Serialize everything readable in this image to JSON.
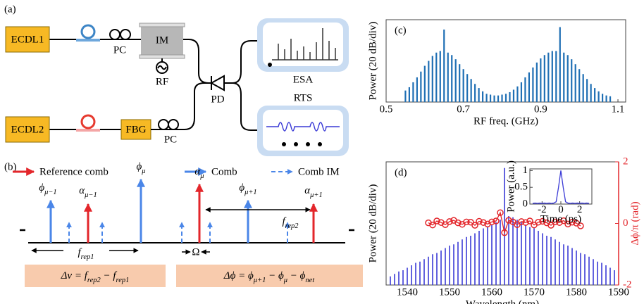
{
  "panel_a": {
    "label": "(a)",
    "ecdl1": "ECDL1",
    "pc1": "PC",
    "im": "IM",
    "rf": "RF",
    "ecdl2": "ECDL2",
    "fbg": "FBG",
    "pc2": "PC",
    "pd": "PD",
    "esa": "ESA",
    "rts": "RTS"
  },
  "panel_b": {
    "label": "(b)",
    "legend": [
      "Reference comb",
      "Comb",
      "Comb IM"
    ],
    "symbols": {
      "phi_m1": [
        [
          "ϕ",
          "μ−1"
        ]
      ],
      "alpha_m1": [
        [
          "α",
          "μ−1"
        ]
      ],
      "phi_m": [
        [
          "ϕ",
          "μ"
        ]
      ],
      "alpha_m": [
        [
          "α",
          "μ"
        ]
      ],
      "phi_p1": [
        [
          "ϕ",
          "μ+1"
        ]
      ],
      "alpha_p1": [
        [
          "α",
          "μ+1"
        ]
      ],
      "f_rep2": [
        [
          "f",
          "rep2"
        ]
      ],
      "f_rep1": [
        [
          "f",
          "rep1"
        ]
      ]
    },
    "omega": "Ω",
    "equations": [
      [
        [
          "Δv = f",
          "rep2"
        ],
        [
          " − f",
          "rep1"
        ]
      ],
      [
        [
          "Δϕ = ϕ",
          "μ+1"
        ],
        [
          " − ϕ",
          "μ"
        ],
        [
          " − ϕ",
          "net"
        ]
      ]
    ]
  },
  "chart_data": [
    {
      "type": "stem",
      "panel_label": "(c)",
      "xlabel": "RF freq. (GHz)",
      "ylabel": "Power (20 dB/div)",
      "xlim": [
        0.5,
        1.12
      ],
      "xticks": [
        0.5,
        0.7,
        0.9,
        1.1
      ],
      "ylim": [
        0,
        100
      ],
      "series": [
        {
          "color": "#1f6fb4",
          "x": [
            0.55,
            0.56,
            0.57,
            0.58,
            0.59,
            0.6,
            0.61,
            0.62,
            0.63,
            0.64,
            0.65,
            0.66,
            0.67,
            0.68,
            0.69,
            0.7,
            0.71,
            0.72,
            0.73,
            0.74,
            0.75,
            0.76,
            0.77,
            0.78,
            0.79,
            0.8,
            0.81,
            0.82,
            0.83,
            0.84,
            0.85,
            0.86,
            0.87,
            0.88,
            0.89,
            0.9,
            0.91,
            0.92,
            0.93,
            0.94,
            0.95,
            0.96,
            0.97,
            0.98,
            0.99,
            1.0,
            1.01,
            1.02,
            1.03,
            1.04,
            1.05,
            1.06,
            1.07,
            1.08
          ],
          "values": [
            14,
            18,
            24,
            30,
            37,
            44,
            50,
            56,
            60,
            62,
            88,
            60,
            57,
            52,
            46,
            40,
            34,
            28,
            22,
            17,
            13,
            10,
            9,
            8,
            8,
            9,
            10,
            12,
            15,
            19,
            24,
            30,
            36,
            42,
            48,
            53,
            57,
            60,
            62,
            62,
            91,
            60,
            57,
            52,
            46,
            40,
            34,
            28,
            22,
            17,
            13,
            10,
            8,
            7
          ]
        }
      ]
    },
    {
      "type": "stem",
      "panel_label": "(d)",
      "xlabel": "Wavelength (nm)",
      "ylabel": "Power (20 dB/div)",
      "y2label": "Δϕ/π (rad)",
      "y2color": "#e3262b",
      "xlim": [
        1535,
        1590
      ],
      "xticks": [
        1540,
        1550,
        1560,
        1570,
        1580,
        1590
      ],
      "ylim": [
        0,
        100
      ],
      "y2lim": [
        -2,
        2
      ],
      "y2ticks": [
        -2,
        0,
        2
      ],
      "series": [
        {
          "color": "#3a3ad6",
          "x": [
            1536,
            1537,
            1538,
            1539,
            1540,
            1541,
            1542,
            1543,
            1544,
            1545,
            1546,
            1547,
            1548,
            1549,
            1550,
            1551,
            1552,
            1553,
            1554,
            1555,
            1556,
            1557,
            1558,
            1559,
            1560,
            1561,
            1562,
            1563,
            1564,
            1565,
            1566,
            1567,
            1568,
            1569,
            1570,
            1571,
            1572,
            1573,
            1574,
            1575,
            1576,
            1577,
            1578,
            1579,
            1580,
            1581,
            1582,
            1583,
            1584,
            1585,
            1586,
            1587,
            1588,
            1589
          ],
          "values": [
            7,
            9,
            11,
            12,
            14,
            16,
            18,
            19,
            21,
            23,
            25,
            26,
            28,
            30,
            32,
            33,
            35,
            37,
            39,
            40,
            42,
            44,
            46,
            47,
            49,
            51,
            53,
            95,
            56,
            55,
            53,
            51,
            49,
            47,
            46,
            44,
            42,
            40,
            39,
            37,
            35,
            33,
            32,
            30,
            28,
            26,
            25,
            23,
            21,
            19,
            18,
            16,
            14,
            12
          ]
        },
        {
          "color": "#e3262b",
          "type": "line",
          "axis": "y2",
          "x": [
            1545,
            1546,
            1547,
            1548,
            1549,
            1550,
            1551,
            1552,
            1553,
            1554,
            1555,
            1556,
            1557,
            1558,
            1559,
            1560,
            1561,
            1562,
            1563,
            1564,
            1565,
            1566,
            1567,
            1568,
            1569,
            1570,
            1571,
            1572,
            1573,
            1574,
            1575,
            1576,
            1577,
            1578,
            1579,
            1580,
            1581
          ],
          "values": [
            0.02,
            -0.05,
            0.08,
            0.03,
            -0.04,
            0.06,
            0.1,
            0.02,
            -0.03,
            0.05,
            0.04,
            -0.06,
            0.07,
            0.03,
            -0.02,
            0.05,
            0.08,
            0.35,
            -0.3,
            0.1,
            0.05,
            -0.04,
            0.06,
            0.03,
            0.08,
            -0.05,
            0.04,
            0.07,
            0.02,
            -0.06,
            0.05,
            0.03,
            0.09,
            -0.02,
            0.04,
            0.01,
            -0.08
          ]
        }
      ]
    },
    {
      "type": "line",
      "xlabel": "Time (ps)",
      "ylabel": "Power (a.u.)",
      "xlim": [
        -3.3,
        3.3
      ],
      "xticks": [
        -2,
        0,
        2
      ],
      "ylim": [
        0,
        1.05
      ],
      "yticks": [
        0,
        0.5,
        1
      ],
      "series": [
        {
          "color": "#3a3ad6",
          "x": [
            -3,
            -2.75,
            -2.5,
            -2.25,
            -2,
            -1.75,
            -1.5,
            -1.25,
            -1,
            -0.75,
            -0.5,
            -0.25,
            0,
            0.25,
            0.5,
            0.75,
            1,
            1.25,
            1.5,
            1.75,
            2,
            2.25,
            2.5,
            2.75,
            3
          ],
          "values": [
            0.02,
            0.03,
            0.02,
            0.03,
            0.02,
            0.03,
            0.02,
            0.03,
            0.02,
            0.03,
            0.07,
            0.5,
            1,
            0.5,
            0.07,
            0.03,
            0.02,
            0.03,
            0.02,
            0.03,
            0.02,
            0.03,
            0.02,
            0.03,
            0.02
          ]
        }
      ]
    }
  ]
}
